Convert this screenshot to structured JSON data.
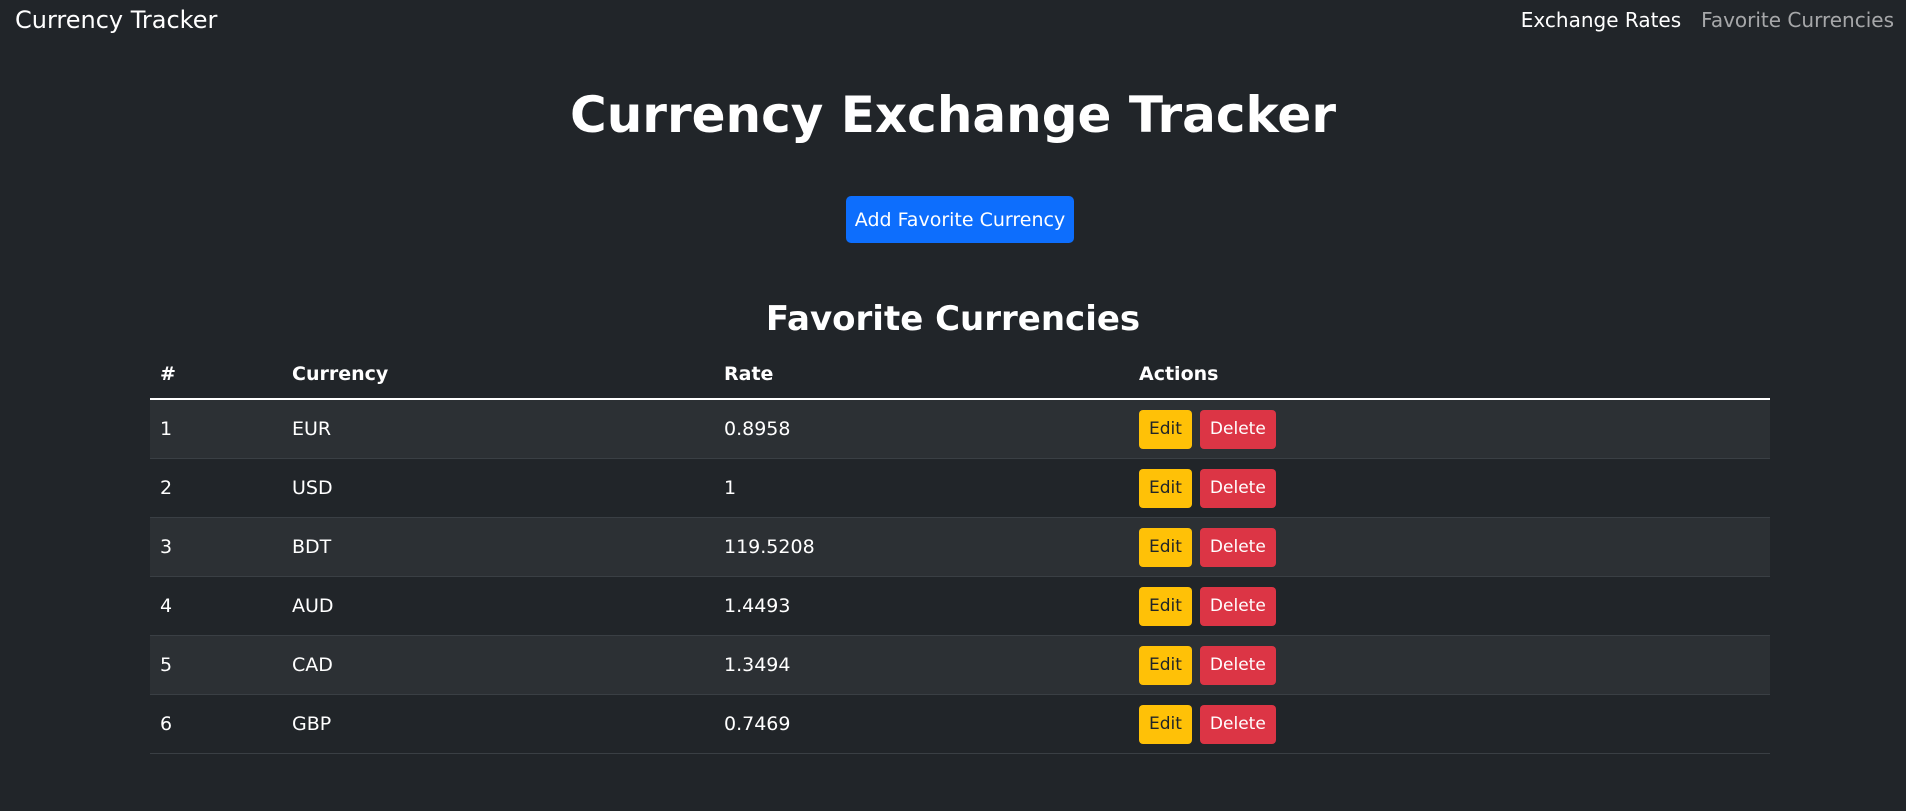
{
  "navbar": {
    "brand": "Currency Tracker",
    "links": [
      {
        "label": "Exchange Rates",
        "active": true
      },
      {
        "label": "Favorite Currencies",
        "active": false
      }
    ]
  },
  "main": {
    "title": "Currency Exchange Tracker",
    "add_button_label": "Add Favorite Currency",
    "section_title": "Favorite Currencies"
  },
  "table": {
    "headers": [
      "#",
      "Currency",
      "Rate",
      "Actions"
    ],
    "rows": [
      {
        "index": "1",
        "currency": "EUR",
        "rate": "0.8958"
      },
      {
        "index": "2",
        "currency": "USD",
        "rate": "1"
      },
      {
        "index": "3",
        "currency": "BDT",
        "rate": "119.5208"
      },
      {
        "index": "4",
        "currency": "AUD",
        "rate": "1.4493"
      },
      {
        "index": "5",
        "currency": "CAD",
        "rate": "1.3494"
      },
      {
        "index": "6",
        "currency": "GBP",
        "rate": "0.7469"
      }
    ],
    "edit_label": "Edit",
    "delete_label": "Delete"
  },
  "colors": {
    "background": "#212529",
    "primary": "#0d6efd",
    "warning": "#ffc107",
    "danger": "#dc3545"
  }
}
